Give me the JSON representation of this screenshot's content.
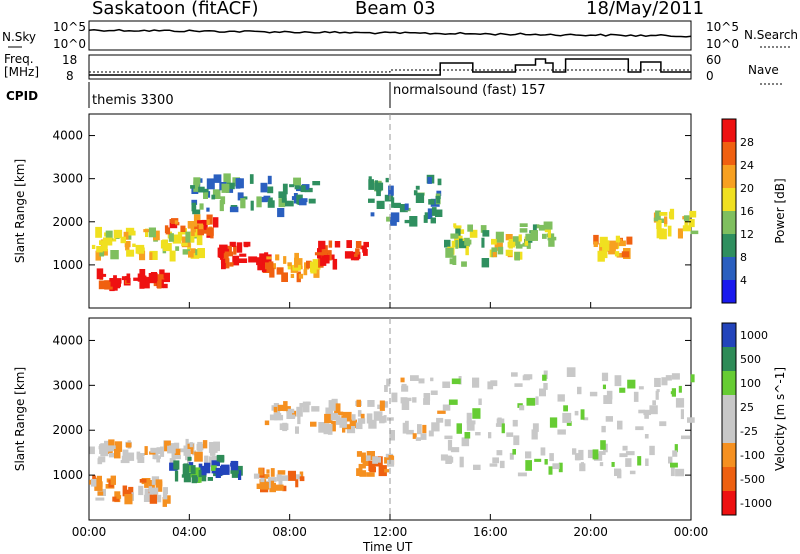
{
  "header": {
    "station": "Saskatoon (fitACF)",
    "beam": "Beam 03",
    "date": "18/May/2011"
  },
  "noise_panel": {
    "left_label": "N.Sky",
    "right_label": "N.Search",
    "ytick_top": "10^5",
    "ytick_bottom": "10^0"
  },
  "freq_panel": {
    "left_label": "Freq.",
    "left_unit": "[MHz]",
    "left_ticks": [
      "18",
      "8"
    ],
    "right_label": "Nave",
    "right_ticks": [
      "60",
      "0"
    ]
  },
  "cpid_panel": {
    "label": "CPID",
    "segments": [
      {
        "name": "themis 3300",
        "start_h": 0
      },
      {
        "name": "normalsound (fast) 157",
        "start_h": 12
      }
    ]
  },
  "colors": {
    "power": [
      "#1a1aee",
      "#2a5fbf",
      "#2f8f5f",
      "#7fbf5f",
      "#f0e020",
      "#f7a020",
      "#f06010",
      "#ee1111"
    ],
    "velocity": [
      "#ee1111",
      "#ee6010",
      "#f59020",
      "#c8c8c8",
      "#c8c8c8",
      "#66cc33",
      "#2e8b57",
      "#2244bb"
    ]
  },
  "chart_data": [
    {
      "type": "heatmap",
      "title": "Power",
      "ylabel": "Slant Range [km]",
      "xlabel": "Time UT",
      "ylim": [
        0,
        4500
      ],
      "xlim": [
        0,
        24
      ],
      "yticks": [
        "1000",
        "2000",
        "3000",
        "4000"
      ],
      "xticks": [
        "00:00",
        "04:00",
        "08:00",
        "12:00",
        "16:00",
        "20:00",
        "00:00"
      ],
      "colorbar_label": "Power [dB]",
      "colorbar_ticks": [
        "4",
        "8",
        "12",
        "16",
        "20",
        "24",
        "28"
      ],
      "bands": [
        {
          "t0": 0.0,
          "t1": 3.0,
          "r0": 500,
          "r1": 800,
          "level": 7
        },
        {
          "t0": 0.0,
          "t1": 4.5,
          "r0": 1200,
          "r1": 1800,
          "level": 4
        },
        {
          "t0": 3.0,
          "t1": 5.0,
          "r0": 1700,
          "r1": 2100,
          "level": 6
        },
        {
          "t0": 5.0,
          "t1": 6.5,
          "r0": 1000,
          "r1": 1500,
          "level": 7
        },
        {
          "t0": 6.5,
          "t1": 7.0,
          "r0": 900,
          "r1": 1300,
          "level": 7
        },
        {
          "t0": 7.0,
          "t1": 9.0,
          "r0": 700,
          "r1": 1200,
          "level": 5
        },
        {
          "t0": 9.0,
          "t1": 11.0,
          "r0": 1000,
          "r1": 1500,
          "level": 7
        },
        {
          "t0": 4.0,
          "t1": 9.0,
          "r0": 2200,
          "r1": 3000,
          "level": 2
        },
        {
          "t0": 11.0,
          "t1": 14.0,
          "r0": 2000,
          "r1": 3000,
          "level": 2
        },
        {
          "t0": 14.0,
          "t1": 16.0,
          "r0": 1000,
          "r1": 2000,
          "level": 3
        },
        {
          "t0": 16.0,
          "t1": 17.0,
          "r0": 1200,
          "r1": 1700,
          "level": 4
        },
        {
          "t0": 17.0,
          "t1": 18.5,
          "r0": 1400,
          "r1": 2000,
          "level": 3
        },
        {
          "t0": 20.0,
          "t1": 21.5,
          "r0": 1200,
          "r1": 1600,
          "level": 5
        },
        {
          "t0": 22.5,
          "t1": 24.0,
          "r0": 1700,
          "r1": 2200,
          "level": 4
        }
      ]
    },
    {
      "type": "heatmap",
      "title": "Velocity",
      "ylabel": "Slant Range [km]",
      "xlabel": "Time UT",
      "ylim": [
        0,
        4500
      ],
      "xlim": [
        0,
        24
      ],
      "yticks": [
        "1000",
        "2000",
        "3000",
        "4000"
      ],
      "xticks": [
        "00:00",
        "04:00",
        "08:00",
        "12:00",
        "16:00",
        "20:00",
        "00:00"
      ],
      "colorbar_label": "Velocity [m s^-1]",
      "colorbar_ticks": [
        "1000",
        "500",
        "100",
        "25",
        "-25",
        "-100",
        "-500",
        "-1000"
      ],
      "bands": [
        {
          "t0": 0.0,
          "t1": 3.0,
          "r0": 400,
          "r1": 900,
          "level": 2
        },
        {
          "t0": 0.0,
          "t1": 5.0,
          "r0": 1300,
          "r1": 1700,
          "level": 3
        },
        {
          "t0": 3.0,
          "t1": 5.0,
          "r0": 900,
          "r1": 1400,
          "level": 6
        },
        {
          "t0": 5.0,
          "t1": 6.0,
          "r0": 1000,
          "r1": 1400,
          "level": 7
        },
        {
          "t0": 6.5,
          "t1": 8.5,
          "r0": 700,
          "r1": 1100,
          "level": 2
        },
        {
          "t0": 10.5,
          "t1": 12.0,
          "r0": 1000,
          "r1": 1500,
          "level": 2
        },
        {
          "t0": 7.0,
          "t1": 11.5,
          "r0": 2000,
          "r1": 2600,
          "level": 3
        },
        {
          "t0": 11.5,
          "t1": 14.0,
          "r0": 1800,
          "r1": 3200,
          "level": 3
        },
        {
          "t0": 14.0,
          "t1": 24.0,
          "r0": 1000,
          "r1": 3300,
          "level": 4
        }
      ]
    }
  ]
}
